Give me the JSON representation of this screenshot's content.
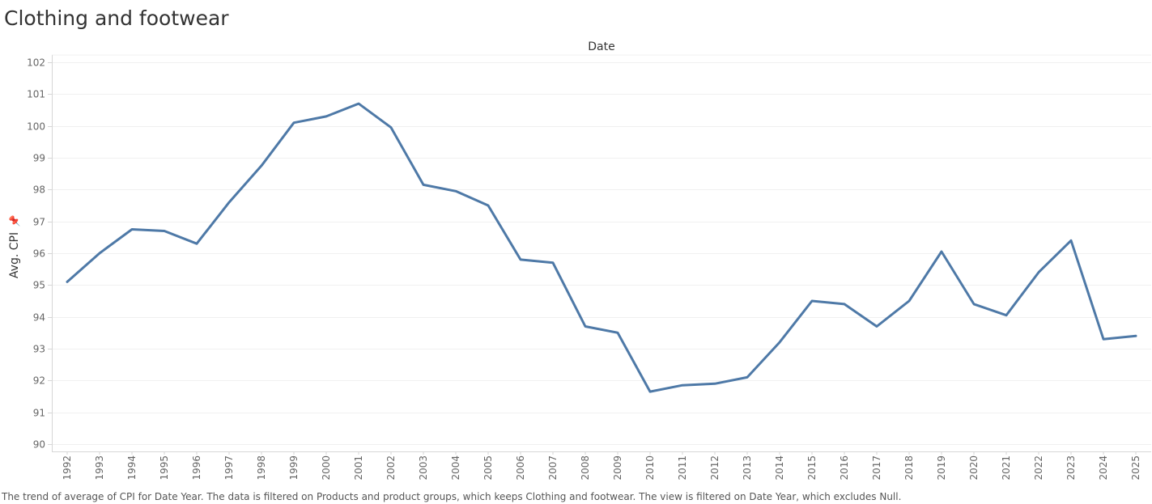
{
  "header": {
    "title": "Clothing and footwear"
  },
  "caption": "The trend of average of CPI for Date Year.  The data is filtered on Products and product groups, which keeps Clothing and footwear. The view is filtered on Date Year, which excludes Null.",
  "chart_data": {
    "type": "line",
    "title": "Clothing and footwear",
    "xlabel": "Date",
    "ylabel": "Avg. CPI",
    "ylabel_icon": "pin-icon",
    "ylim": [
      90,
      102
    ],
    "yticks": [
      90,
      91,
      92,
      93,
      94,
      95,
      96,
      97,
      98,
      99,
      100,
      101,
      102
    ],
    "grid": true,
    "line_color": "#4e79a7",
    "categories": [
      "1992",
      "1993",
      "1994",
      "1995",
      "1996",
      "1997",
      "1998",
      "1999",
      "2000",
      "2001",
      "2002",
      "2003",
      "2004",
      "2005",
      "2006",
      "2007",
      "2008",
      "2009",
      "2010",
      "2011",
      "2012",
      "2013",
      "2014",
      "2015",
      "2016",
      "2017",
      "2018",
      "2019",
      "2020",
      "2021",
      "2022",
      "2023",
      "2024",
      "2025"
    ],
    "series": [
      {
        "values": [
          95.1,
          96.0,
          96.75,
          96.7,
          96.3,
          97.6,
          98.75,
          100.1,
          100.3,
          100.7,
          99.95,
          98.15,
          97.95,
          97.5,
          95.8,
          95.7,
          93.7,
          93.5,
          91.65,
          91.85,
          91.9,
          92.1,
          93.2,
          94.5,
          94.4,
          93.7,
          94.5,
          96.05,
          94.4,
          94.05,
          95.4,
          96.4,
          93.3,
          93.4
        ]
      }
    ]
  }
}
